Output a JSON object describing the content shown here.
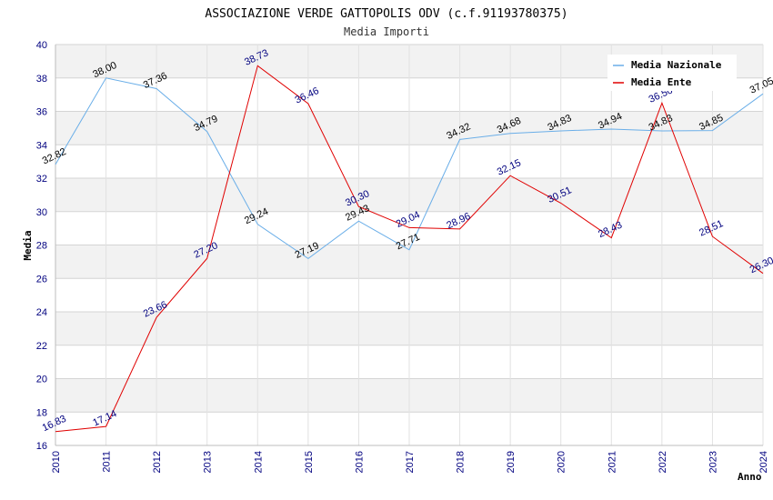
{
  "chart_data": {
    "type": "line",
    "title": "ASSOCIAZIONE VERDE GATTOPOLIS ODV (c.f.91193780375)",
    "subtitle": "Media Importi",
    "xlabel": "Anno",
    "ylabel": "Media",
    "ylim": [
      16,
      40
    ],
    "yticks": [
      "16",
      "18",
      "20",
      "22",
      "24",
      "26",
      "28",
      "30",
      "32",
      "34",
      "36",
      "38",
      "40"
    ],
    "categories": [
      "2010",
      "2011",
      "2012",
      "2013",
      "2014",
      "2015",
      "2016",
      "2017",
      "2018",
      "2019",
      "2020",
      "2021",
      "2022",
      "2023",
      "2024"
    ],
    "legend_position": "top-right",
    "grid": true,
    "series": [
      {
        "name": "Media Nazionale",
        "color": "#6aaee8",
        "label_color": "#000000",
        "values": [
          32.82,
          38.0,
          37.36,
          34.79,
          29.24,
          27.19,
          29.43,
          27.71,
          34.32,
          34.68,
          34.83,
          34.94,
          34.83,
          34.85,
          37.05
        ],
        "labels": [
          "32.82",
          "38.00",
          "37.36",
          "34.79",
          "29.24",
          "27.19",
          "29.43",
          "27.71",
          "34.32",
          "34.68",
          "34.83",
          "34.94",
          "34.83",
          "34.85",
          "37.05"
        ]
      },
      {
        "name": "Media Ente",
        "color": "#e00000",
        "label_color": "#00007f",
        "values": [
          16.83,
          17.14,
          23.66,
          27.2,
          38.73,
          36.46,
          30.3,
          29.04,
          28.96,
          32.15,
          30.51,
          28.43,
          36.5,
          28.51,
          26.3
        ],
        "labels": [
          "16.83",
          "17.14",
          "23.66",
          "27.20",
          "38.73",
          "36.46",
          "30.30",
          "29.04",
          "28.96",
          "32.15",
          "30.51",
          "28.43",
          "36.50",
          "28.51",
          "26.30"
        ]
      }
    ]
  }
}
